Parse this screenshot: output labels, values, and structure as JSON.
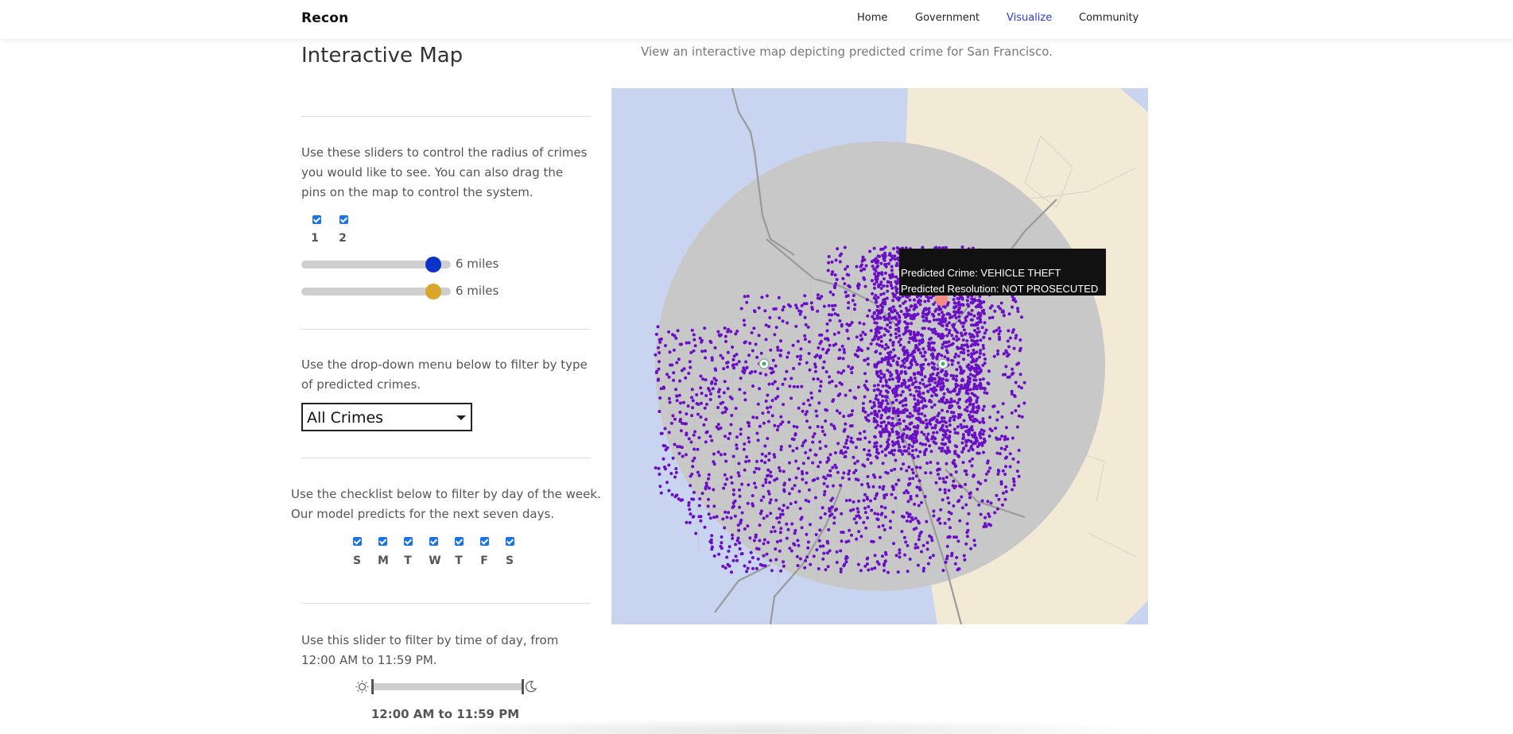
{
  "nav": {
    "brand": "Recon",
    "links": [
      {
        "label": "Home"
      },
      {
        "label": "Government"
      },
      {
        "label": "Visualize",
        "active": true
      },
      {
        "label": "Community"
      }
    ]
  },
  "page": {
    "title": "Interactive Map",
    "map_description": "View an interactive map depicting predicted crime for San Francisco."
  },
  "radius": {
    "instructions": "Use these sliders to control the radius of crimes you would like to see. You can also drag the pins on the map to control the system.",
    "pins": [
      {
        "label": "1",
        "checked": true
      },
      {
        "label": "2",
        "checked": true
      }
    ],
    "sliders": [
      {
        "value_label": "6 miles",
        "fraction": 1.0,
        "color": "#0b33c8"
      },
      {
        "value_label": "6 miles",
        "fraction": 1.0,
        "color": "#d9a62c"
      }
    ]
  },
  "crime_filter": {
    "instructions": "Use the drop-down menu below to filter by type of predicted crimes.",
    "selected": "All Crimes"
  },
  "days": {
    "instructions": "Use the checklist below to filter by day of the week. Our model predicts for the next seven days.",
    "items": [
      {
        "label": "S",
        "checked": true
      },
      {
        "label": "M",
        "checked": true
      },
      {
        "label": "T",
        "checked": true
      },
      {
        "label": "W",
        "checked": true
      },
      {
        "label": "T",
        "checked": true
      },
      {
        "label": "F",
        "checked": true
      },
      {
        "label": "S",
        "checked": true
      }
    ]
  },
  "time": {
    "instructions": "Use this slider to filter by time of day, from 12:00 AM to 11:59 PM.",
    "readout": "12:00 AM to 11:59 PM"
  },
  "map": {
    "colors": {
      "ocean": "#c9d4f0",
      "land": "#f3ead6",
      "radius_overlay": "#c8c8c8",
      "crime_point": "#6a0fc6",
      "selected_point": "#f28b82"
    },
    "tooltip": {
      "crime": "Predicted Crime: VEHICLE THEFT",
      "resolution": "Predicted Resolution: NOT PROSECUTED"
    }
  }
}
